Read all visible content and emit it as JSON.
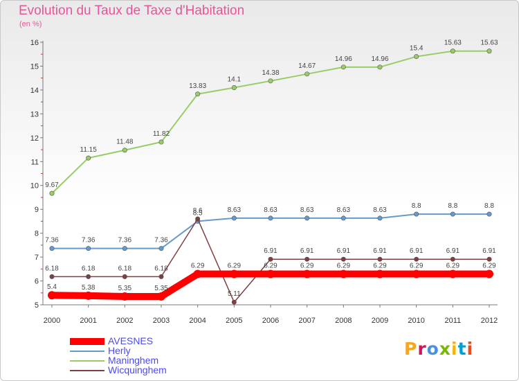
{
  "chart_data": {
    "type": "line",
    "title": "Evolution du Taux de Taxe d'Habitation",
    "subtitle": "(en %)",
    "x": [
      "2000",
      "2001",
      "2002",
      "2003",
      "2004",
      "2005",
      "2006",
      "2007",
      "2008",
      "2009",
      "2010",
      "2011",
      "2012"
    ],
    "ylim": [
      5,
      16
    ],
    "yticks": [
      "5",
      "6",
      "7",
      "8",
      "9",
      "10",
      "11",
      "12",
      "13",
      "14",
      "15",
      "16"
    ],
    "grid": false,
    "legend_position": "bottom-left",
    "series": [
      {
        "name": "AVESNES",
        "color": "#ff0000",
        "width": 10,
        "values": [
          5.4,
          5.38,
          5.35,
          5.35,
          6.29,
          6.29,
          6.29,
          6.29,
          6.29,
          6.29,
          6.29,
          6.29,
          6.29
        ],
        "labels": [
          "5.4",
          "5.38",
          "5.35",
          "5.35",
          "6.29",
          "6.29",
          "6.29",
          "6.29",
          "6.29",
          "6.29",
          "6.29",
          "6.29",
          "6.29"
        ]
      },
      {
        "name": "Herly",
        "color": "#6699cc",
        "width": 2,
        "values": [
          7.36,
          7.36,
          7.36,
          7.36,
          8.5,
          8.63,
          8.63,
          8.63,
          8.63,
          8.63,
          8.8,
          8.8,
          8.8
        ],
        "labels": [
          "7.36",
          "7.36",
          "7.36",
          "7.36",
          "8.5",
          "8.63",
          "8.63",
          "8.63",
          "8.63",
          "8.63",
          "8.8",
          "8.8",
          "8.8"
        ]
      },
      {
        "name": "Maninghem",
        "color": "#99cc66",
        "width": 2,
        "values": [
          9.67,
          11.15,
          11.48,
          11.82,
          13.83,
          14.1,
          14.38,
          14.67,
          14.96,
          14.96,
          15.4,
          15.63,
          15.63
        ],
        "labels": [
          "9.67",
          "11.15",
          "11.48",
          "11.82",
          "13.83",
          "14.1",
          "14.38",
          "14.67",
          "14.96",
          "14.96",
          "15.4",
          "15.63",
          "15.63"
        ]
      },
      {
        "name": "Wicquinghem",
        "color": "#7f3f3f",
        "width": 1.5,
        "values": [
          6.18,
          6.18,
          6.18,
          6.18,
          8.6,
          5.11,
          6.91,
          6.91,
          6.91,
          6.91,
          6.91,
          6.91,
          6.91
        ],
        "labels": [
          "6.18",
          "6.18",
          "6.18",
          "6.18",
          "8.6",
          "5.11",
          "6.91",
          "6.91",
          "6.91",
          "6.91",
          "6.91",
          "6.91",
          "6.91"
        ]
      }
    ]
  },
  "branding": {
    "logo_text": "Proxiti",
    "logo_colors": [
      "#f5a623",
      "#d4145a",
      "#4a90e2",
      "#7ab800",
      "#f7b500",
      "#00a0d2",
      "#e84e1b"
    ]
  }
}
